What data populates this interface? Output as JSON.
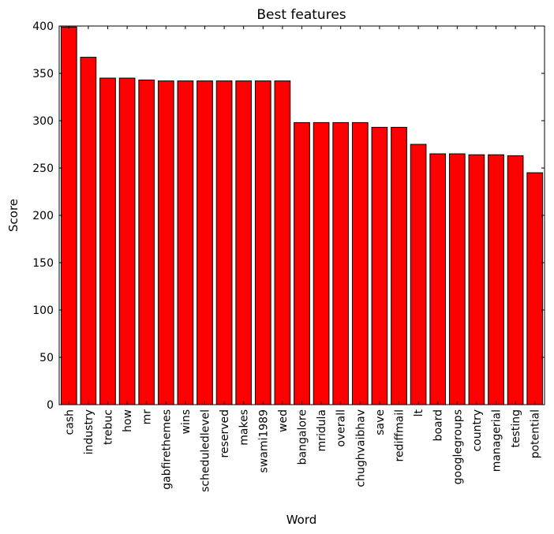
{
  "chart_data": {
    "type": "bar",
    "title": "Best features",
    "xlabel": "Word",
    "ylabel": "Score",
    "ylim": [
      0,
      400
    ],
    "yticks": [
      0,
      50,
      100,
      150,
      200,
      250,
      300,
      350,
      400
    ],
    "grid": false,
    "bar_color": "#ff0000",
    "categories": [
      "cash",
      "industry",
      "trebuc",
      "how",
      "mr",
      "gabfirethemes",
      "wins",
      "scheduledlevel",
      "reserved",
      "makes",
      "swami1989",
      "wed",
      "bangalore",
      "mridula",
      "overall",
      "chughvaibhav",
      "save",
      "rediffmail",
      "lt",
      "board",
      "googlegroups",
      "country",
      "managerial",
      "testing",
      "potential"
    ],
    "values": [
      399,
      367,
      345,
      345,
      343,
      342,
      342,
      342,
      342,
      342,
      342,
      342,
      298,
      298,
      298,
      298,
      293,
      293,
      275,
      265,
      265,
      264,
      264,
      263,
      245
    ]
  }
}
